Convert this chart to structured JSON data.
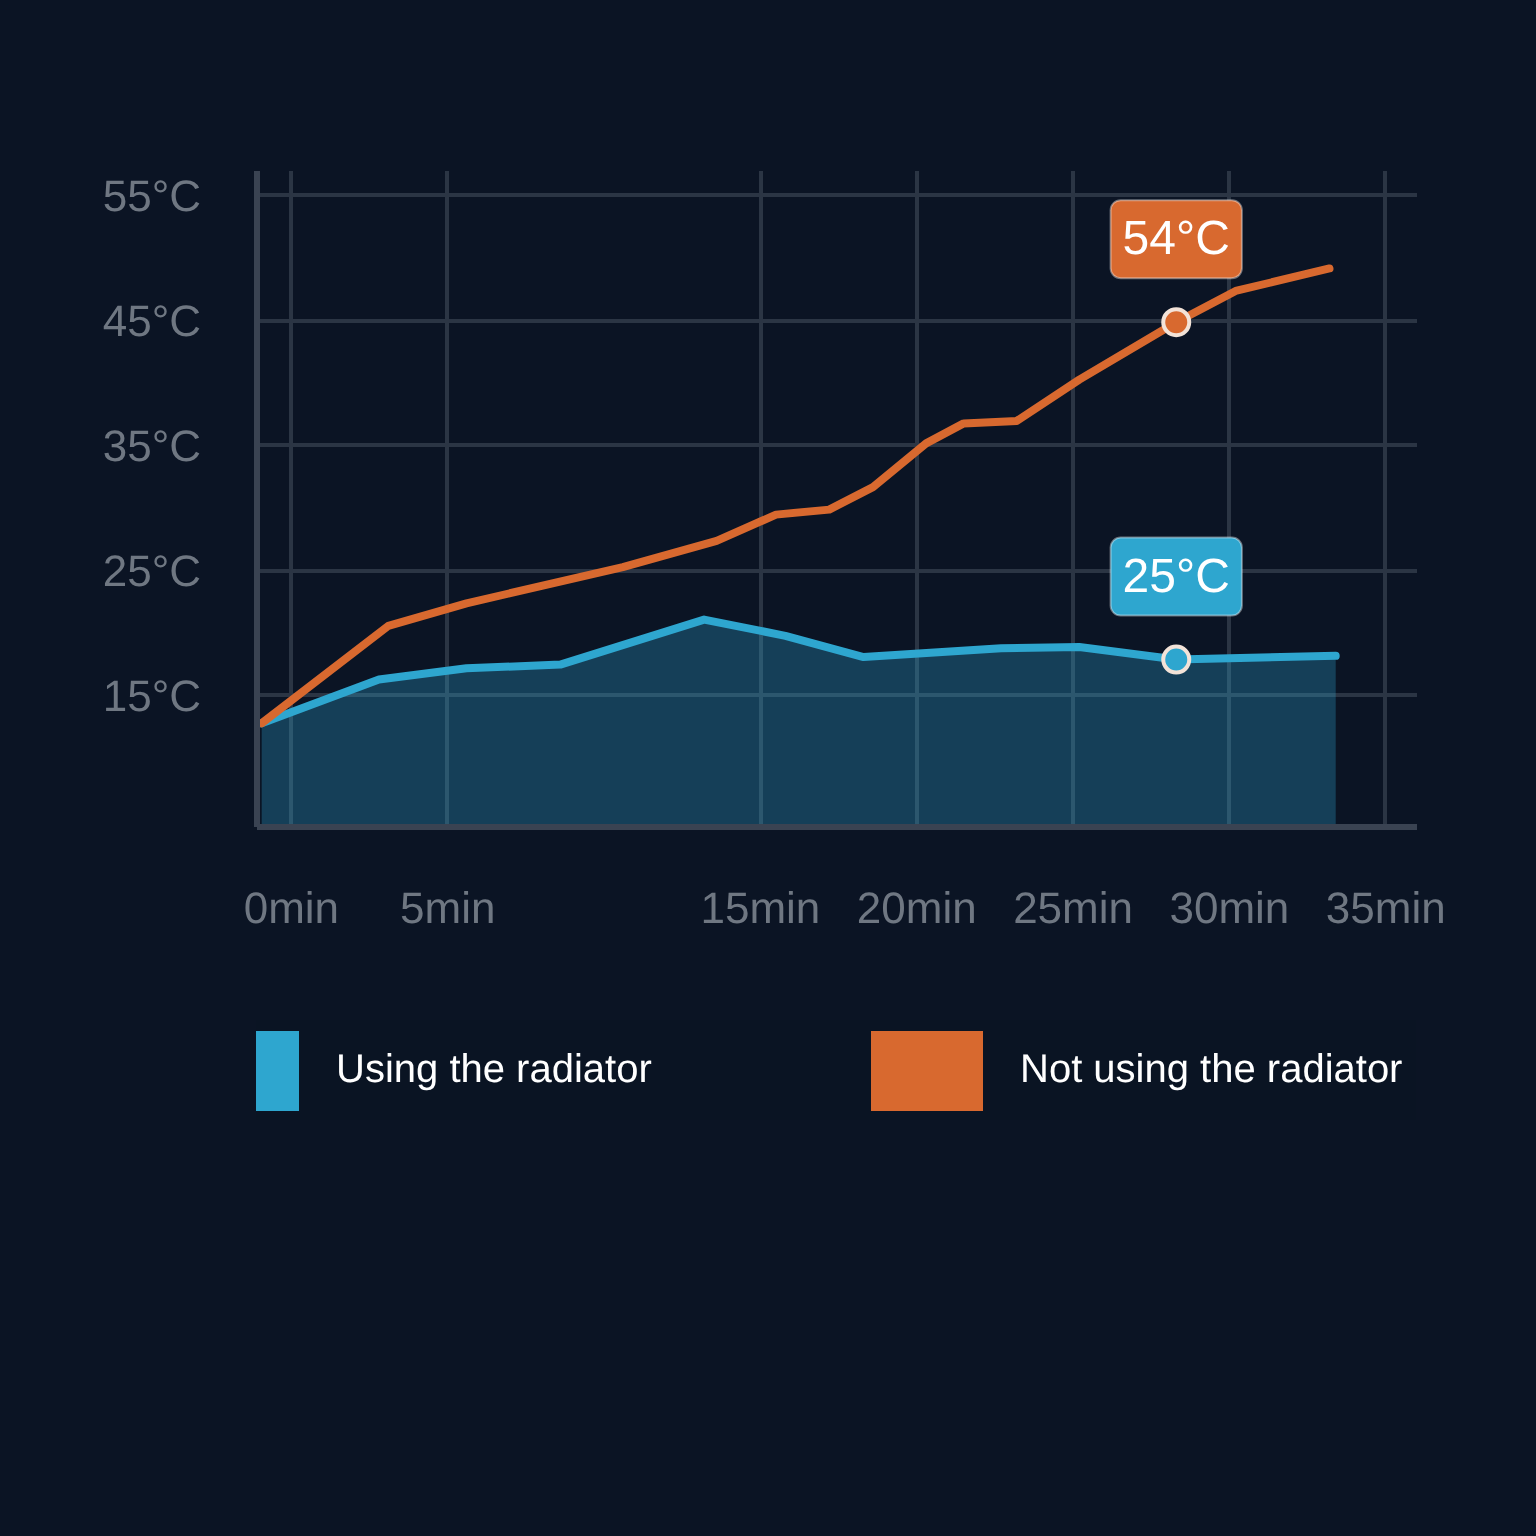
{
  "chart_data": {
    "type": "line",
    "xlim": [
      -1.1,
      36
    ],
    "ylim": [
      4.5,
      57
    ],
    "xticks": [
      {
        "value": 0,
        "label": "0min"
      },
      {
        "value": 5,
        "label": "5min"
      },
      {
        "value": 15,
        "label": "15min"
      },
      {
        "value": 20,
        "label": "20min"
      },
      {
        "value": 25,
        "label": "25min"
      },
      {
        "value": 30,
        "label": "30min"
      },
      {
        "value": 35,
        "label": "35min"
      }
    ],
    "yticks": [
      {
        "value": 15,
        "label": "15°C"
      },
      {
        "value": 25,
        "label": "25°C"
      },
      {
        "value": 35,
        "label": "35°C"
      },
      {
        "value": 45,
        "label": "45°C"
      },
      {
        "value": 55,
        "label": "55°C"
      }
    ],
    "grid": true,
    "legend": "bottom",
    "series": [
      {
        "name": "Using the radiator",
        "type": "area",
        "color": "#2ea6cf",
        "x": [
          -0.95,
          2.8,
          5.6,
          8.6,
          13.2,
          15.8,
          18.3,
          22.7,
          25.2,
          28.3,
          33.4
        ],
        "values": [
          12.8,
          16.3,
          17.2,
          17.5,
          21.1,
          19.8,
          18.1,
          18.8,
          18.9,
          17.9,
          18.2
        ]
      },
      {
        "name": "Not using the radiator",
        "color": "#d8692f",
        "x": [
          -0.95,
          3.1,
          5.6,
          10.6,
          13.6,
          15.5,
          17.2,
          18.6,
          20.3,
          21.5,
          23.2,
          25.2,
          28.3,
          30.2,
          33.2
        ],
        "values": [
          12.8,
          20.6,
          22.4,
          25.3,
          27.4,
          29.5,
          29.9,
          31.7,
          35.2,
          36.8,
          37.0,
          40.3,
          44.9,
          47.4,
          49.2
        ]
      }
    ],
    "annotations": [
      {
        "text": "54°C",
        "x": 28.3,
        "y": 44.9
      },
      {
        "text": "25°C",
        "x": 28.3,
        "y": 17.9
      }
    ]
  }
}
